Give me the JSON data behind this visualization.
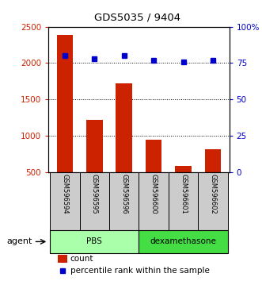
{
  "title": "GDS5035 / 9404",
  "samples": [
    "GSM596594",
    "GSM596595",
    "GSM596596",
    "GSM596600",
    "GSM596601",
    "GSM596602"
  ],
  "counts": [
    2390,
    1220,
    1720,
    950,
    590,
    820
  ],
  "percentiles": [
    80,
    78,
    80,
    77,
    76,
    77
  ],
  "bar_color": "#cc2200",
  "dot_color": "#0000cc",
  "left_ylim": [
    500,
    2500
  ],
  "left_yticks": [
    500,
    1000,
    1500,
    2000,
    2500
  ],
  "right_ylim": [
    0,
    100
  ],
  "right_yticks": [
    0,
    25,
    50,
    75,
    100
  ],
  "right_yticklabels": [
    "0",
    "25",
    "50",
    "75",
    "100%"
  ],
  "groups": [
    {
      "label": "PBS",
      "indices": [
        0,
        1,
        2
      ],
      "color": "#aaffaa"
    },
    {
      "label": "dexamethasone",
      "indices": [
        3,
        4,
        5
      ],
      "color": "#44dd44"
    }
  ],
  "agent_label": "agent",
  "legend_count_label": "count",
  "legend_percentile_label": "percentile rank within the sample",
  "tick_label_color_left": "#cc2200",
  "tick_label_color_right": "#0000cc",
  "background_label": "#cccccc"
}
